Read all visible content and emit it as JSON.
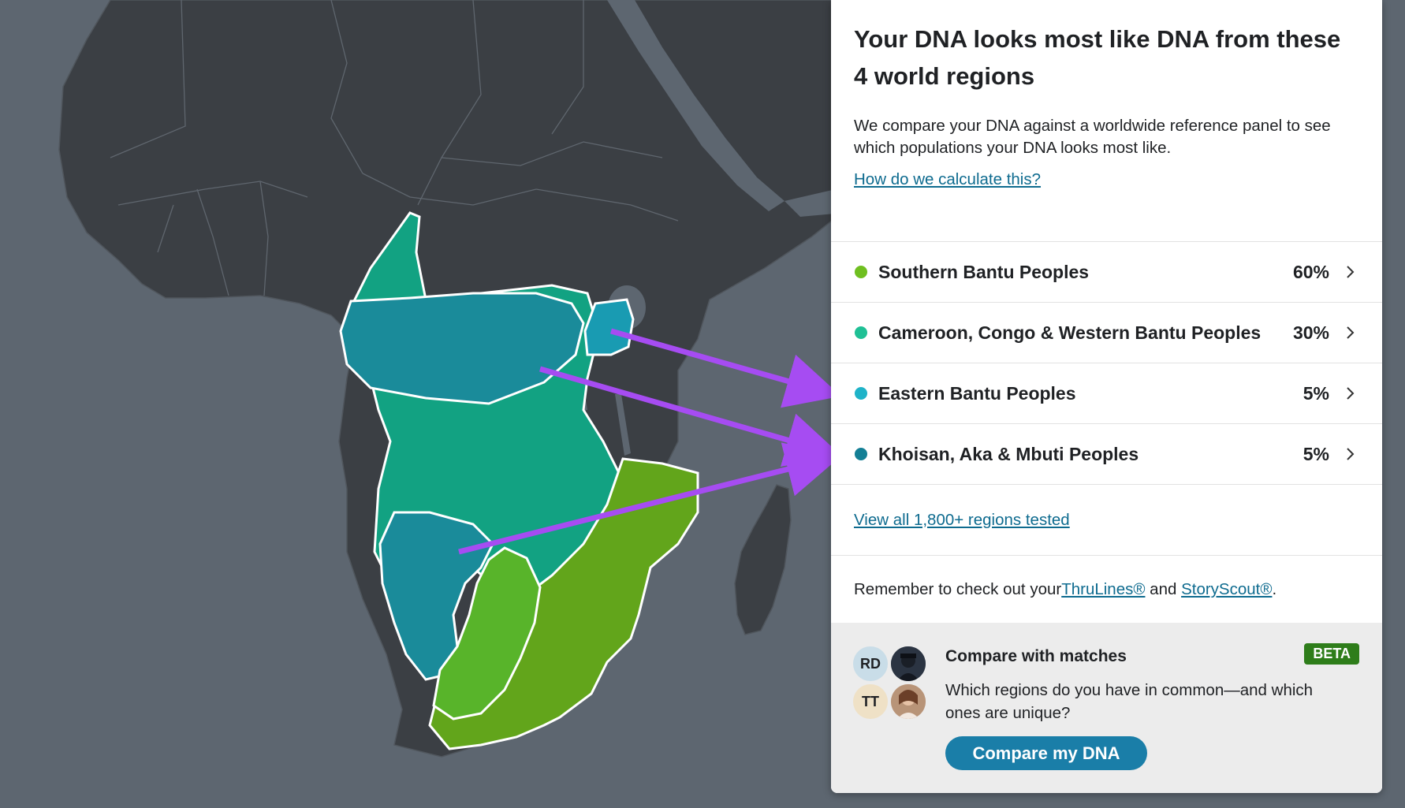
{
  "panel": {
    "title": "Your DNA looks most like DNA from these 4 world regions",
    "description": "We compare your DNA against a worldwide reference panel to see which populations your DNA looks most like.",
    "how_link": "How do we calculate this?",
    "regions": [
      {
        "name": "Southern Bantu Peoples",
        "percent": "60%",
        "color": "#6fbf20"
      },
      {
        "name": "Cameroon, Congo & Western Bantu Peoples",
        "percent": "30%",
        "color": "#1fc095"
      },
      {
        "name": "Eastern Bantu Peoples",
        "percent": "5%",
        "color": "#1fb3c8"
      },
      {
        "name": "Khoisan, Aka & Mbuti Peoples",
        "percent": "5%",
        "color": "#137f95"
      }
    ],
    "view_all": "View all 1,800+ regions tested",
    "remember_prefix": "Remember to check out your ",
    "thrulines": "ThruLines®",
    "and": " and ",
    "storyscout": "StoryScout®",
    "period": "."
  },
  "compare": {
    "title": "Compare with matches",
    "badge": "BETA",
    "description": "Which regions do you have in common—and which ones are unique?",
    "button": "Compare my DNA",
    "avatars": [
      "RD",
      "TT"
    ]
  },
  "colors": {
    "ocean": "#5d6670",
    "land": "#3b3f44",
    "arrow": "#a64cf2",
    "accent_button": "#1a7ea8",
    "beta_badge": "#2e7d1a"
  }
}
